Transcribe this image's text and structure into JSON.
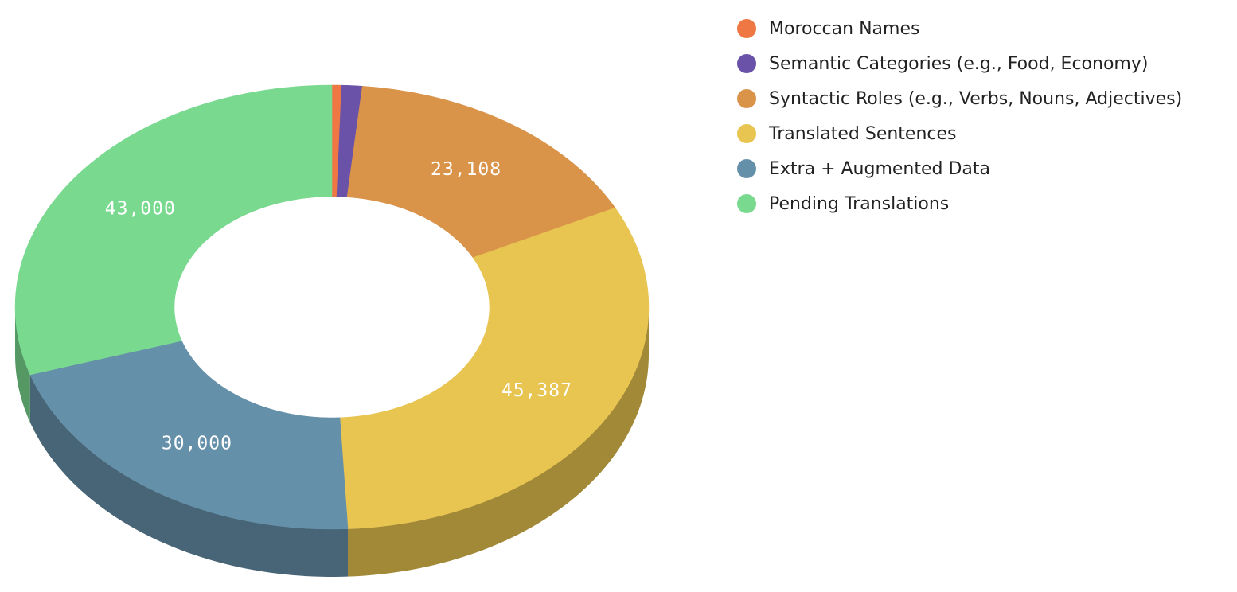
{
  "chart_data": {
    "type": "pie",
    "style": "3d-donut",
    "categories": [
      "Moroccan Names",
      "Semantic Categories (e.g., Food, Economy)",
      "Syntactic Roles (e.g., Verbs, Nouns, Adjectives)",
      "Translated Sentences",
      "Extra + Augmented Data",
      "Pending Translations"
    ],
    "values": [
      700,
      1500,
      23108,
      45387,
      30000,
      43000
    ],
    "data_labels": [
      "",
      "",
      "23,108",
      "45,387",
      "30,000",
      "43,000"
    ],
    "colors": [
      "#EE7744",
      "#6A52A8",
      "#DA944A",
      "#E8C450",
      "#6590AA",
      "#79D98F"
    ],
    "legend_position": "top-right",
    "title": ""
  }
}
